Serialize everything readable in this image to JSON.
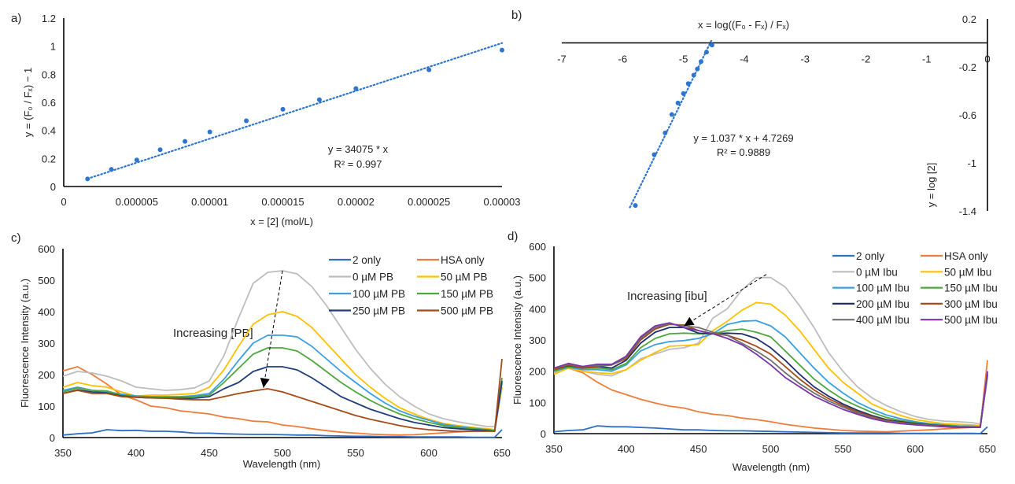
{
  "panels": {
    "a": "a)",
    "b": "b)",
    "c": "c)",
    "d": "d)"
  },
  "chart_data": [
    {
      "panel": "a",
      "type": "scatter",
      "xlabel": "x = [2] (mol/L)",
      "ylabel": "y = (F₀ / Fₓ) − 1",
      "xlim": [
        0,
        3e-05
      ],
      "ylim": [
        0,
        1.2
      ],
      "xticks": [
        "0",
        "0.000005",
        "0.00001",
        "0.000015",
        "0.00002",
        "0.000025",
        "0.00003"
      ],
      "xtick_values": [
        0,
        5e-06,
        1e-05,
        1.5e-05,
        2e-05,
        2.5e-05,
        3e-05
      ],
      "yticks": [
        "0",
        "0.2",
        "0.4",
        "0.6",
        "0.8",
        "1",
        "1.2"
      ],
      "ytick_values": [
        0,
        0.2,
        0.4,
        0.6,
        0.8,
        1,
        1.2
      ],
      "x": [
        1.63e-06,
        3.26e-06,
        5e-06,
        6.6e-06,
        8.3e-06,
        1e-05,
        1.25e-05,
        1.5e-05,
        1.75e-05,
        2e-05,
        2.5e-05,
        3e-05
      ],
      "y": [
        0.054,
        0.122,
        0.189,
        0.262,
        0.322,
        0.389,
        0.468,
        0.55,
        0.618,
        0.698,
        0.831,
        0.972
      ],
      "trendline": {
        "equation": "y = 34075 * x",
        "r2": "R² = 0.997",
        "slope": 34075,
        "intercept": 0,
        "x_range": [
          1.63e-06,
          3e-05
        ]
      },
      "grid": false,
      "color": "#2E75D0"
    },
    {
      "panel": "b",
      "type": "scatter",
      "xlabel": "x = log((F₀ - Fₓ) / Fₓ)",
      "ylabel": "y = log [2]",
      "xlim": [
        -7,
        0
      ],
      "ylim": [
        -1.4,
        0.2
      ],
      "xticks": [
        "-7",
        "-6",
        "-5",
        "-4",
        "-3",
        "-2",
        "-1",
        "0"
      ],
      "xtick_values": [
        -7,
        -6,
        -5,
        -4,
        -3,
        -2,
        -1,
        0
      ],
      "yticks": [
        "0.2",
        "-0.2",
        "-0.6",
        "-1",
        "-1.4"
      ],
      "ytick_values": [
        0.2,
        -0.2,
        -0.6,
        -1,
        -1.4
      ],
      "x": [
        -4.53,
        -4.62,
        -4.71,
        -4.77,
        -4.83,
        -4.92,
        -5.0,
        -5.09,
        -5.19,
        -5.3,
        -5.48,
        -5.79
      ],
      "y": [
        -0.018,
        -0.077,
        -0.156,
        -0.217,
        -0.269,
        -0.339,
        -0.422,
        -0.501,
        -0.597,
        -0.75,
        -0.931,
        -1.355
      ],
      "trendline": {
        "equation": "y = 1.037 * x + 4.7269",
        "r2": "R² = 0.9889",
        "slope": 1.037,
        "intercept": 4.7269,
        "x_range": [
          -5.88,
          -4.53
        ]
      },
      "grid": false,
      "color": "#2E75D0"
    },
    {
      "panel": "c",
      "type": "line",
      "xlabel": "Wavelength (nm)",
      "ylabel": "Fluorescence Intensity (a.u.)",
      "xlim": [
        350,
        650
      ],
      "ylim": [
        0,
        600
      ],
      "xticks": [
        "350",
        "400",
        "450",
        "500",
        "550",
        "600",
        "650"
      ],
      "xtick_values": [
        350,
        400,
        450,
        500,
        550,
        600,
        650
      ],
      "yticks": [
        "0",
        "100",
        "200",
        "300",
        "400",
        "500",
        "600"
      ],
      "ytick_values": [
        0,
        100,
        200,
        300,
        400,
        500,
        600
      ],
      "legend_position": "top-right",
      "grid": false,
      "annotation": {
        "text": "Increasing [PB]",
        "arrow_from": [
          500,
          530
        ],
        "arrow_to": [
          487,
          158
        ]
      },
      "x": [
        350,
        360,
        370,
        380,
        390,
        400,
        410,
        420,
        430,
        440,
        450,
        460,
        470,
        480,
        490,
        500,
        510,
        520,
        530,
        540,
        550,
        560,
        570,
        580,
        590,
        600,
        610,
        620,
        630,
        640,
        645,
        650
      ],
      "series": [
        {
          "name": "2 only",
          "color": "#2F6FC6",
          "values": [
            8,
            12,
            15,
            25,
            22,
            23,
            20,
            20,
            18,
            14,
            14,
            12,
            11,
            10,
            10,
            9,
            8,
            8,
            6,
            5,
            4,
            4,
            3,
            3,
            2,
            2,
            2,
            2,
            1,
            1,
            1,
            25
          ]
        },
        {
          "name": "HSA only",
          "color": "#F07C3A",
          "values": [
            212,
            225,
            200,
            170,
            135,
            120,
            100,
            95,
            85,
            80,
            75,
            65,
            60,
            52,
            50,
            40,
            35,
            28,
            22,
            17,
            14,
            11,
            9,
            8,
            9,
            12,
            15,
            18,
            20,
            22,
            22,
            160
          ]
        },
        {
          "name": "0 µM PB",
          "color": "#BDBDBD",
          "values": [
            195,
            210,
            205,
            195,
            180,
            160,
            155,
            150,
            152,
            158,
            180,
            260,
            380,
            490,
            525,
            530,
            520,
            480,
            420,
            350,
            280,
            220,
            170,
            130,
            100,
            75,
            60,
            50,
            42,
            35,
            35,
            170
          ]
        },
        {
          "name": "50 µM PB",
          "color": "#FFC000",
          "values": [
            160,
            175,
            165,
            160,
            145,
            132,
            135,
            135,
            137,
            140,
            160,
            215,
            290,
            360,
            390,
            400,
            385,
            350,
            300,
            250,
            200,
            160,
            125,
            95,
            75,
            58,
            45,
            38,
            32,
            28,
            25,
            160
          ]
        },
        {
          "name": "100 µM PB",
          "color": "#3A9FE0",
          "values": [
            150,
            160,
            150,
            145,
            138,
            132,
            130,
            130,
            130,
            133,
            140,
            185,
            245,
            300,
            325,
            325,
            320,
            290,
            250,
            210,
            175,
            140,
            110,
            85,
            68,
            55,
            42,
            35,
            30,
            25,
            22,
            175
          ]
        },
        {
          "name": "150 µM PB",
          "color": "#4EA73C",
          "values": [
            145,
            158,
            150,
            148,
            135,
            130,
            128,
            128,
            128,
            130,
            135,
            175,
            220,
            265,
            285,
            285,
            275,
            245,
            210,
            175,
            145,
            118,
            95,
            75,
            60,
            48,
            38,
            32,
            28,
            25,
            22,
            190
          ]
        },
        {
          "name": "250 µM PB",
          "color": "#1F3E7A",
          "values": [
            140,
            152,
            145,
            142,
            132,
            128,
            126,
            125,
            124,
            125,
            130,
            155,
            175,
            210,
            225,
            225,
            215,
            190,
            160,
            130,
            110,
            90,
            75,
            60,
            48,
            40,
            32,
            28,
            25,
            22,
            20,
            180
          ]
        },
        {
          "name": "500 µM PB",
          "color": "#A64B18",
          "values": [
            140,
            150,
            140,
            140,
            130,
            128,
            126,
            125,
            122,
            120,
            120,
            130,
            140,
            148,
            155,
            145,
            130,
            115,
            100,
            85,
            70,
            58,
            48,
            38,
            30,
            25,
            22,
            20,
            20,
            20,
            20,
            250
          ]
        }
      ]
    },
    {
      "panel": "d",
      "type": "line",
      "xlabel": "Wavelength (nm)",
      "ylabel": "Fluorescence Intensity  (a.u.)",
      "xlim": [
        350,
        650
      ],
      "ylim": [
        0,
        600
      ],
      "xticks": [
        "350",
        "400",
        "450",
        "500",
        "550",
        "600",
        "650"
      ],
      "xtick_values": [
        350,
        400,
        450,
        500,
        550,
        600,
        650
      ],
      "yticks": [
        "0",
        "100",
        "200",
        "300",
        "400",
        "500",
        "600"
      ],
      "ytick_values": [
        0,
        100,
        200,
        300,
        400,
        500,
        600
      ],
      "legend_position": "top-right",
      "grid": false,
      "annotation": {
        "text": "Increasing [ibu]",
        "arrow_from": [
          497,
          510
        ],
        "arrow_to": [
          440,
          345
        ]
      },
      "x": [
        350,
        360,
        370,
        380,
        390,
        400,
        410,
        420,
        430,
        440,
        450,
        460,
        470,
        480,
        490,
        500,
        510,
        520,
        530,
        540,
        550,
        560,
        570,
        580,
        590,
        600,
        610,
        620,
        630,
        640,
        645,
        650
      ],
      "series": [
        {
          "name": "2 only",
          "color": "#2F6FC6",
          "values": [
            6,
            10,
            12,
            25,
            22,
            22,
            20,
            18,
            15,
            12,
            12,
            10,
            9,
            9,
            8,
            7,
            6,
            5,
            4,
            3,
            2,
            2,
            2,
            2,
            1,
            1,
            1,
            1,
            1,
            1,
            0,
            22
          ]
        },
        {
          "name": "HSA only",
          "color": "#F07C3A",
          "values": [
            210,
            210,
            195,
            165,
            140,
            125,
            110,
            98,
            88,
            82,
            70,
            62,
            58,
            50,
            45,
            38,
            30,
            24,
            18,
            14,
            10,
            8,
            7,
            6,
            8,
            10,
            12,
            15,
            18,
            20,
            22,
            235
          ]
        },
        {
          "name": "0 µM Ibu",
          "color": "#BDBDBD",
          "values": [
            195,
            210,
            200,
            190,
            185,
            205,
            240,
            255,
            270,
            275,
            290,
            370,
            400,
            460,
            500,
            500,
            470,
            410,
            340,
            260,
            200,
            150,
            115,
            90,
            70,
            55,
            45,
            40,
            38,
            35,
            30,
            200
          ]
        },
        {
          "name": "50 µM Ibu",
          "color": "#FFC000",
          "values": [
            190,
            210,
            200,
            195,
            192,
            205,
            235,
            260,
            280,
            282,
            285,
            330,
            360,
            395,
            420,
            415,
            380,
            330,
            270,
            210,
            165,
            130,
            95,
            75,
            58,
            45,
            38,
            32,
            30,
            28,
            25,
            180
          ]
        },
        {
          "name": "100 µM Ibu",
          "color": "#3A9FE0",
          "values": [
            200,
            212,
            205,
            205,
            200,
            220,
            265,
            285,
            295,
            298,
            305,
            320,
            350,
            360,
            362,
            345,
            310,
            260,
            210,
            165,
            130,
            100,
            78,
            60,
            48,
            38,
            32,
            28,
            25,
            24,
            22,
            190
          ]
        },
        {
          "name": "150 µM Ibu",
          "color": "#4EA73C",
          "values": [
            200,
            215,
            210,
            210,
            205,
            225,
            275,
            305,
            320,
            322,
            320,
            320,
            330,
            335,
            325,
            310,
            265,
            220,
            175,
            140,
            110,
            88,
            68,
            52,
            42,
            35,
            30,
            26,
            24,
            22,
            20,
            185
          ]
        },
        {
          "name": "200 µM Ibu",
          "color": "#1F2E6E",
          "values": [
            205,
            218,
            210,
            215,
            210,
            235,
            290,
            325,
            340,
            340,
            322,
            320,
            322,
            320,
            305,
            275,
            235,
            190,
            150,
            120,
            95,
            75,
            58,
            45,
            38,
            32,
            28,
            25,
            22,
            20,
            20,
            190
          ]
        },
        {
          "name": "300 µM Ibu",
          "color": "#A64B18",
          "values": [
            205,
            220,
            210,
            215,
            220,
            240,
            300,
            335,
            350,
            348,
            330,
            320,
            315,
            300,
            280,
            255,
            215,
            175,
            140,
            112,
            90,
            70,
            55,
            42,
            36,
            30,
            27,
            24,
            22,
            20,
            20,
            195
          ]
        },
        {
          "name": "400 µM Ibu",
          "color": "#707070",
          "values": [
            210,
            222,
            215,
            218,
            220,
            245,
            305,
            340,
            352,
            345,
            340,
            325,
            315,
            290,
            265,
            235,
            195,
            160,
            130,
            105,
            85,
            66,
            52,
            40,
            34,
            29,
            26,
            23,
            21,
            20,
            20,
            185
          ]
        },
        {
          "name": "500 µM Ibu",
          "color": "#7A35A8",
          "values": [
            210,
            225,
            215,
            222,
            222,
            248,
            310,
            345,
            355,
            340,
            330,
            320,
            305,
            285,
            255,
            220,
            180,
            150,
            120,
            98,
            78,
            62,
            48,
            38,
            32,
            28,
            25,
            22,
            20,
            20,
            20,
            200
          ]
        }
      ]
    }
  ]
}
